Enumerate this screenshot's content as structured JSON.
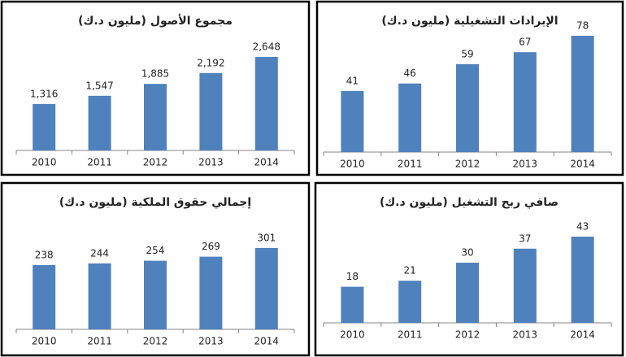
{
  "chart_data": [
    {
      "type": "bar",
      "title": "مجموع الأصول (مليون د.ك)",
      "categories": [
        "2010",
        "2011",
        "2012",
        "2013",
        "2014"
      ],
      "values": [
        1316,
        1547,
        1885,
        2192,
        2648
      ],
      "value_labels": [
        "1,316",
        "1,547",
        "1,885",
        "2,192",
        "2,648"
      ],
      "color": "#4f81bd"
    },
    {
      "type": "bar",
      "title": "الإيرادات التشغيلية (مليون د.ك)",
      "categories": [
        "2010",
        "2011",
        "2012",
        "2013",
        "2014"
      ],
      "values": [
        41,
        46,
        59,
        67,
        78
      ],
      "color": "#4f81bd"
    },
    {
      "type": "bar",
      "title": "إجمالي حقوق الملكية (مليون د.ك)",
      "categories": [
        "2010",
        "2011",
        "2012",
        "2013",
        "2014"
      ],
      "values": [
        238,
        244,
        254,
        269,
        301
      ],
      "color": "#4f81bd"
    },
    {
      "type": "bar",
      "title": "صافي ربح التشغيل (مليون د.ك)",
      "categories": [
        "2010",
        "2011",
        "2012",
        "2013",
        "2014"
      ],
      "values": [
        18,
        21,
        30,
        37,
        43
      ],
      "color": "#4f81bd"
    }
  ]
}
